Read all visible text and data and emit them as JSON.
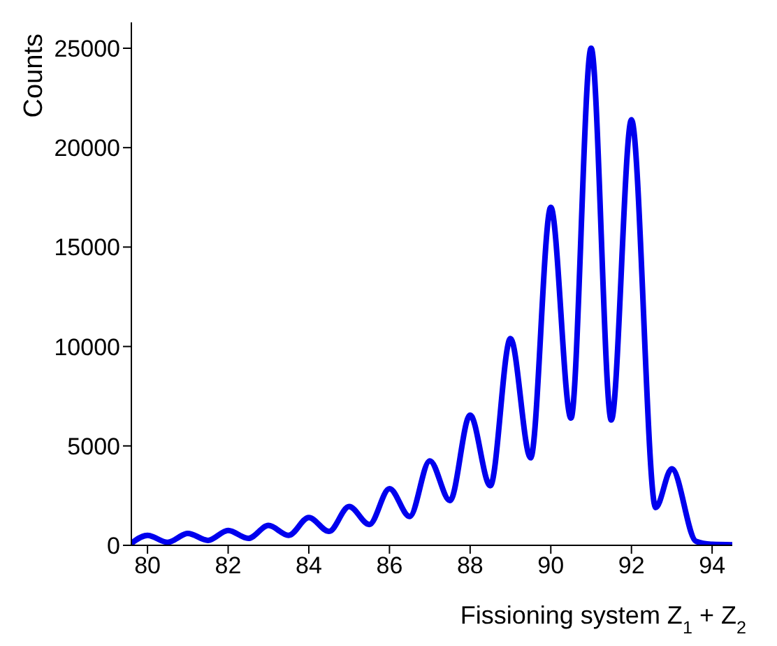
{
  "chart_data": {
    "type": "line",
    "xlabel": "Fissioning system Z$_{1}$ + Z$_{2}$",
    "ylabel": "Counts",
    "x": [
      79.6,
      80,
      80.5,
      81,
      81.5,
      82,
      82.5,
      83,
      83.5,
      84,
      84.5,
      85,
      85.5,
      86,
      86.5,
      87,
      87.5,
      88,
      88.5,
      89,
      89.5,
      90,
      90.5,
      91,
      91.5,
      92,
      92.6,
      93,
      93.6,
      94,
      94.5
    ],
    "series": [
      {
        "color": "#0000ee",
        "values": [
          100,
          500,
          150,
          600,
          250,
          750,
          350,
          1000,
          500,
          1400,
          700,
          1950,
          1050,
          2850,
          1450,
          4250,
          2250,
          6550,
          3000,
          10400,
          4400,
          17000,
          6400,
          25000,
          6300,
          21400,
          1900,
          3850,
          200,
          50,
          30
        ]
      }
    ],
    "xlim": [
      79.6,
      94.5
    ],
    "xticks": [
      80,
      82,
      84,
      86,
      88,
      90,
      92,
      94
    ],
    "ylim": [
      0,
      26300
    ],
    "yticks": [
      0,
      5000,
      10000,
      15000,
      20000,
      25000
    ],
    "grid": false,
    "legend": false,
    "marker": "none",
    "line_style": "solid"
  }
}
